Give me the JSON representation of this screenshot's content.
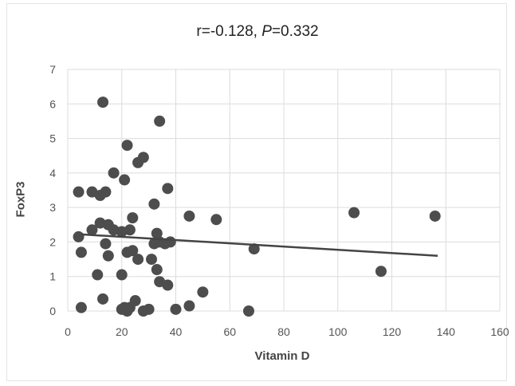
{
  "chart_data": {
    "type": "scatter",
    "title_r": "r=-0.128, ",
    "title_p_label": "P",
    "title_p_value": "=0.332",
    "xlabel": "Vitamin D",
    "ylabel": "FoxP3",
    "xlim": [
      0,
      160
    ],
    "ylim": [
      0,
      7
    ],
    "xticks": [
      0,
      20,
      40,
      60,
      80,
      100,
      120,
      140,
      160
    ],
    "yticks": [
      0,
      1,
      2,
      3,
      4,
      5,
      6,
      7
    ],
    "grid": true,
    "legend": "none",
    "marker_color": "#4d4d4d",
    "line_color": "#444444",
    "points": [
      {
        "x": 13,
        "y": 6.05
      },
      {
        "x": 34,
        "y": 5.5
      },
      {
        "x": 22,
        "y": 4.8
      },
      {
        "x": 28,
        "y": 4.45
      },
      {
        "x": 26,
        "y": 4.3
      },
      {
        "x": 17,
        "y": 4.0
      },
      {
        "x": 21,
        "y": 3.8
      },
      {
        "x": 37,
        "y": 3.55
      },
      {
        "x": 4,
        "y": 3.45
      },
      {
        "x": 9,
        "y": 3.45
      },
      {
        "x": 14,
        "y": 3.45
      },
      {
        "x": 12,
        "y": 3.35
      },
      {
        "x": 32,
        "y": 3.1
      },
      {
        "x": 45,
        "y": 2.75
      },
      {
        "x": 55,
        "y": 2.65
      },
      {
        "x": 106,
        "y": 2.85
      },
      {
        "x": 136,
        "y": 2.75
      },
      {
        "x": 24,
        "y": 2.7
      },
      {
        "x": 12,
        "y": 2.55
      },
      {
        "x": 15,
        "y": 2.5
      },
      {
        "x": 9,
        "y": 2.35
      },
      {
        "x": 17,
        "y": 2.35
      },
      {
        "x": 20,
        "y": 2.3
      },
      {
        "x": 23,
        "y": 2.35
      },
      {
        "x": 33,
        "y": 2.25
      },
      {
        "x": 4,
        "y": 2.15
      },
      {
        "x": 32,
        "y": 1.95
      },
      {
        "x": 34,
        "y": 2.0
      },
      {
        "x": 36,
        "y": 1.95
      },
      {
        "x": 38,
        "y": 2.0
      },
      {
        "x": 14,
        "y": 1.95
      },
      {
        "x": 69,
        "y": 1.8
      },
      {
        "x": 5,
        "y": 1.7
      },
      {
        "x": 22,
        "y": 1.7
      },
      {
        "x": 24,
        "y": 1.75
      },
      {
        "x": 15,
        "y": 1.6
      },
      {
        "x": 26,
        "y": 1.5
      },
      {
        "x": 31,
        "y": 1.5
      },
      {
        "x": 33,
        "y": 1.2
      },
      {
        "x": 116,
        "y": 1.15
      },
      {
        "x": 11,
        "y": 1.05
      },
      {
        "x": 20,
        "y": 1.05
      },
      {
        "x": 34,
        "y": 0.85
      },
      {
        "x": 37,
        "y": 0.75
      },
      {
        "x": 50,
        "y": 0.55
      },
      {
        "x": 13,
        "y": 0.35
      },
      {
        "x": 25,
        "y": 0.3
      },
      {
        "x": 45,
        "y": 0.15
      },
      {
        "x": 5,
        "y": 0.1
      },
      {
        "x": 21,
        "y": 0.1
      },
      {
        "x": 23,
        "y": 0.1
      },
      {
        "x": 30,
        "y": 0.05
      },
      {
        "x": 40,
        "y": 0.05
      },
      {
        "x": 20,
        "y": 0.05
      },
      {
        "x": 22,
        "y": 0.0
      },
      {
        "x": 28,
        "y": 0.0
      },
      {
        "x": 67,
        "y": 0.0
      }
    ],
    "trendline": {
      "x": [
        5,
        137
      ],
      "y": [
        2.22,
        1.6
      ]
    }
  }
}
